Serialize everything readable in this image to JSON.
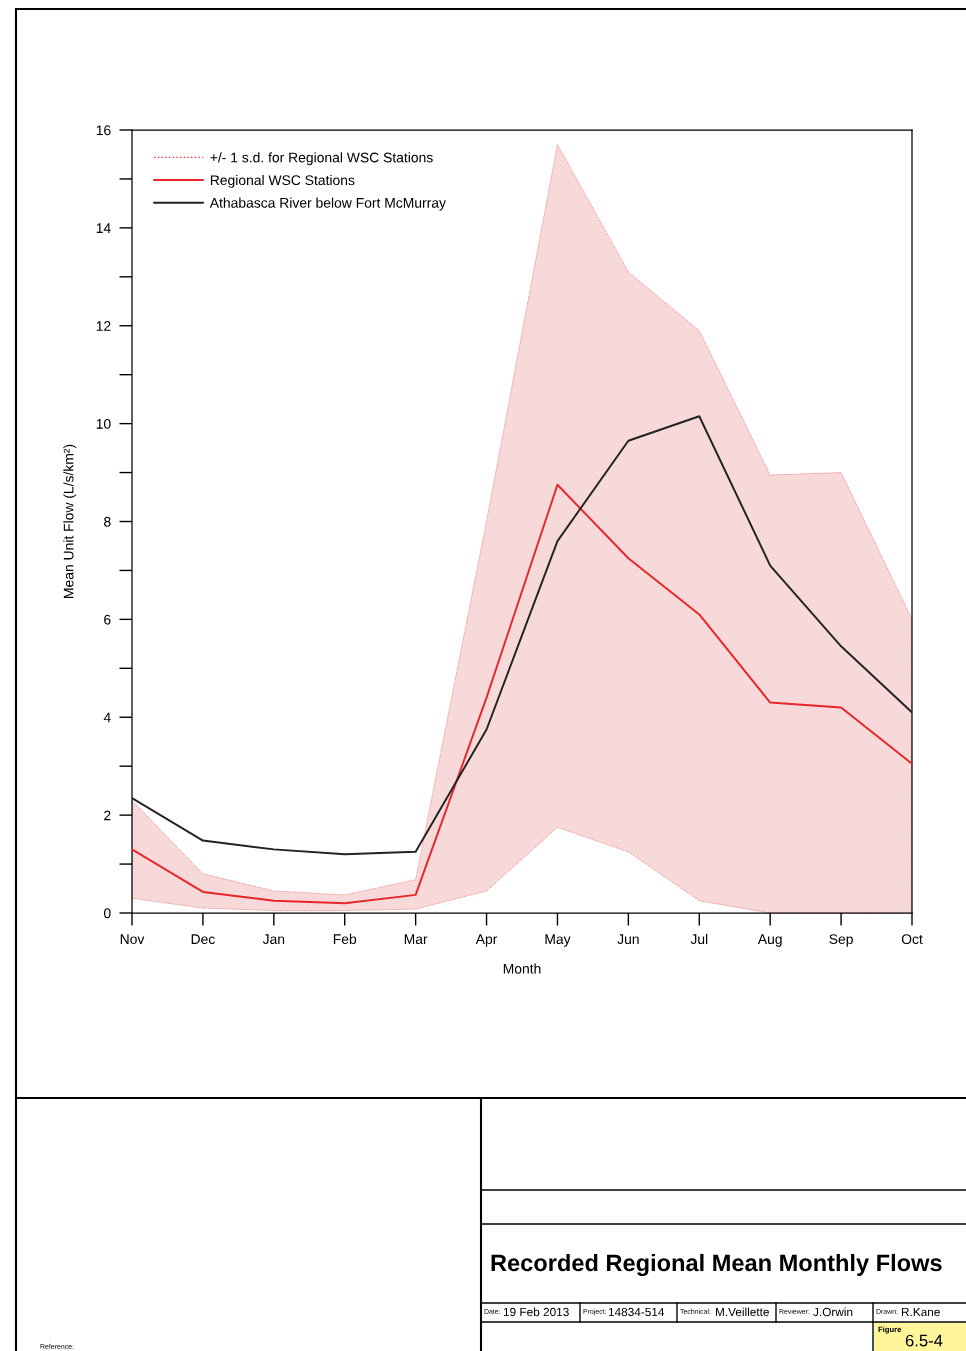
{
  "chart_data": {
    "type": "line",
    "title": "Recorded Regional Mean Monthly Flows",
    "xlabel": "Month",
    "ylabel": "Mean Unit Flow (L/s/km²)",
    "legend_title": "+/- 1 s.d. for Regional WSC Stations",
    "categories": [
      "Nov",
      "Dec",
      "Jan",
      "Feb",
      "Mar",
      "Apr",
      "May",
      "Jun",
      "Jul",
      "Aug",
      "Sep",
      "Oct"
    ],
    "series": [
      {
        "name": "Regional WSC Stations",
        "type": "line",
        "color": "#e8262a",
        "values": [
          1.3,
          0.43,
          0.25,
          0.2,
          0.37,
          4.4,
          8.75,
          7.25,
          6.1,
          4.3,
          4.2,
          3.05
        ],
        "lower": [
          0.3,
          0.1,
          0.05,
          0.05,
          0.08,
          0.45,
          1.75,
          1.25,
          0.25,
          0,
          0,
          0
        ],
        "upper": [
          2.3,
          0.8,
          0.45,
          0.37,
          0.68,
          8.0,
          15.7,
          13.1,
          11.9,
          8.95,
          9.0,
          6.0
        ]
      },
      {
        "name": "Athabasca River below Fort McMurray",
        "type": "line",
        "color": "#222222",
        "values": [
          2.35,
          1.48,
          1.3,
          1.2,
          1.25,
          3.75,
          7.6,
          9.65,
          10.15,
          7.1,
          5.45,
          4.1
        ]
      }
    ],
    "ylim": [
      0,
      16
    ],
    "yticks": [
      0,
      {
        "value": 1,
        "label": null
      },
      2,
      {
        "value": 3,
        "label": null
      },
      4,
      {
        "value": 5,
        "label": null
      },
      6,
      {
        "value": 7,
        "label": null
      },
      8,
      {
        "value": 9,
        "label": null
      },
      10,
      {
        "value": 11,
        "label": null
      },
      12,
      {
        "value": 13,
        "label": null
      },
      14,
      {
        "value": 15,
        "label": null
      },
      16
    ],
    "grid": false,
    "legend": "top left",
    "marker": "none",
    "annotations": [
      "Date:",
      "19 Feb 2013",
      "Project:",
      "14834-514",
      "Technical:",
      "M.Veillette",
      "Reviewer:",
      "J.Orwin",
      "Drawn:",
      "R.Kane",
      "Figure",
      "6.5-4",
      "Reference:"
    ]
  }
}
